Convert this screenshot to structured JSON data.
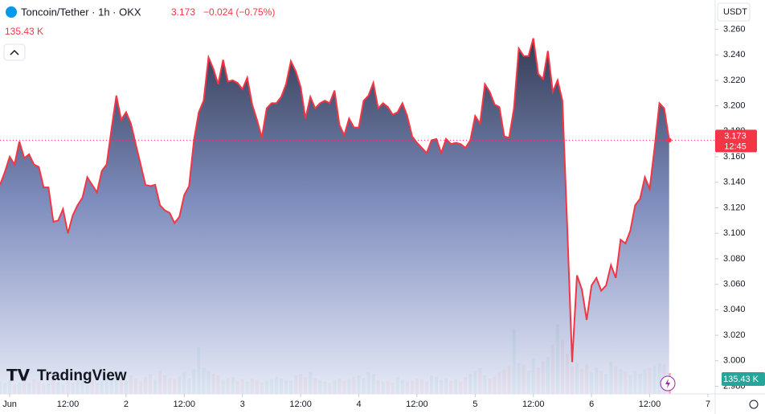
{
  "chart_data": {
    "type": "area",
    "title": "Toncoin/Tether · 1h · OKX",
    "last_price": "3.173",
    "change": "−0.024 (−0.75%)",
    "volume_label": "135.43 K",
    "currency": "USDT",
    "countdown": "12:45",
    "logo": "TradingView",
    "x": [
      -2,
      -1,
      0,
      1,
      2,
      3,
      4,
      5,
      6,
      7,
      8,
      9,
      10,
      11,
      12,
      13,
      14,
      15,
      16,
      17,
      18,
      19,
      20,
      21,
      22,
      23,
      24,
      25,
      26,
      27,
      28,
      29,
      30,
      31,
      32,
      33,
      34,
      35,
      36,
      37,
      38,
      39,
      40,
      41,
      42,
      43,
      44,
      45,
      46,
      47,
      48,
      49,
      50,
      51,
      52,
      53,
      54,
      55,
      56,
      57,
      58,
      59,
      60,
      61,
      62,
      63,
      64,
      65,
      66,
      67,
      68,
      69,
      70,
      71,
      72,
      73,
      74,
      75,
      76,
      77,
      78,
      79,
      80,
      81,
      82,
      83,
      84,
      85,
      86,
      87,
      88,
      89,
      90,
      91,
      92,
      93,
      94,
      95,
      96,
      97,
      98,
      99,
      100,
      101,
      102,
      103,
      104,
      105,
      106,
      107,
      108,
      109,
      110,
      111,
      112,
      113,
      114,
      115,
      116,
      117,
      118,
      119,
      120,
      121,
      122,
      123,
      124,
      125,
      126,
      127,
      128,
      129,
      130,
      131,
      132,
      133,
      134,
      135,
      136
    ],
    "series": [
      {
        "name": "Toncoin/Tether",
        "color": "#f23645",
        "values": [
          3.138,
          3.148,
          3.16,
          3.154,
          3.172,
          3.159,
          3.162,
          3.154,
          3.152,
          3.136,
          3.136,
          3.109,
          3.11,
          3.119,
          3.1,
          3.114,
          3.122,
          3.128,
          3.144,
          3.138,
          3.132,
          3.149,
          3.154,
          3.182,
          3.208,
          3.189,
          3.195,
          3.186,
          3.17,
          3.154,
          3.138,
          3.137,
          3.138,
          3.122,
          3.118,
          3.116,
          3.108,
          3.113,
          3.13,
          3.137,
          3.173,
          3.195,
          3.204,
          3.238,
          3.229,
          3.217,
          3.236,
          3.219,
          3.22,
          3.218,
          3.213,
          3.222,
          3.201,
          3.189,
          3.175,
          3.198,
          3.202,
          3.202,
          3.207,
          3.217,
          3.235,
          3.227,
          3.215,
          3.19,
          3.207,
          3.198,
          3.202,
          3.204,
          3.202,
          3.212,
          3.185,
          3.177,
          3.19,
          3.183,
          3.183,
          3.204,
          3.208,
          3.218,
          3.198,
          3.202,
          3.199,
          3.193,
          3.195,
          3.202,
          3.192,
          3.176,
          3.171,
          3.167,
          3.163,
          3.173,
          3.174,
          3.163,
          3.174,
          3.17,
          3.171,
          3.17,
          3.167,
          3.173,
          3.192,
          3.186,
          3.217,
          3.211,
          3.201,
          3.199,
          3.176,
          3.175,
          3.198,
          3.245,
          3.239,
          3.239,
          3.253,
          3.225,
          3.221,
          3.243,
          3.211,
          3.22,
          3.204,
          3.103,
          2.999,
          3.067,
          3.056,
          3.032,
          3.059,
          3.065,
          3.055,
          3.059,
          3.075,
          3.065,
          3.095,
          3.092,
          3.102,
          3.122,
          3.127,
          3.144,
          3.135,
          3.167,
          3.202,
          3.198,
          3.173
        ]
      },
      {
        "name": "Volume",
        "axis": "y2",
        "up_color": "#26a69a",
        "down_color": "#ef5350",
        "values": [
          80,
          70,
          90,
          60,
          75,
          85,
          70,
          95,
          80,
          65,
          70,
          90,
          75,
          60,
          80,
          70,
          85,
          100,
          75,
          90,
          70,
          80,
          110,
          95,
          140,
          90,
          85,
          120,
          100,
          80,
          110,
          130,
          90,
          150,
          120,
          100,
          95,
          110,
          140,
          100,
          160,
          300,
          170,
          150,
          130,
          120,
          90,
          100,
          110,
          85,
          95,
          80,
          100,
          90,
          75,
          85,
          95,
          110,
          100,
          90,
          85,
          120,
          130,
          110,
          140,
          100,
          90,
          80,
          70,
          90,
          100,
          85,
          95,
          110,
          120,
          100,
          140,
          130,
          90,
          80,
          85,
          75,
          110,
          90,
          80,
          85,
          100,
          95,
          80,
          120,
          110,
          90,
          100,
          85,
          95,
          80,
          110,
          130,
          150,
          170,
          120,
          100,
          110,
          140,
          160,
          180,
          420,
          200,
          190,
          150,
          230,
          170,
          210,
          240,
          320,
          450,
          350,
          260,
          180,
          200,
          160,
          190,
          140,
          170,
          150,
          130,
          210,
          180,
          160,
          140,
          120,
          150,
          130,
          160,
          170,
          180,
          200,
          190,
          135.43
        ]
      }
    ],
    "xlim": [
      -2,
      145.5
    ],
    "xticks": [
      {
        "value": 0,
        "label": "Jun"
      },
      {
        "value": 12,
        "label": "12:00"
      },
      {
        "value": 24,
        "label": "2"
      },
      {
        "value": 36,
        "label": "12:00"
      },
      {
        "value": 48,
        "label": "3"
      },
      {
        "value": 60,
        "label": "12:00"
      },
      {
        "value": 72,
        "label": "4"
      },
      {
        "value": 84,
        "label": "12:00"
      },
      {
        "value": 96,
        "label": "5"
      },
      {
        "value": 108,
        "label": "12:00"
      },
      {
        "value": 120,
        "label": "6"
      },
      {
        "value": 132,
        "label": "12:00"
      },
      {
        "value": 144,
        "label": "7"
      }
    ],
    "ylim": [
      2.974,
      3.283
    ],
    "yticks": [
      {
        "value": 2.98,
        "label": "2.980"
      },
      {
        "value": 3.0,
        "label": "3.000"
      },
      {
        "value": 3.02,
        "label": "3.020"
      },
      {
        "value": 3.04,
        "label": "3.040"
      },
      {
        "value": 3.06,
        "label": "3.060"
      },
      {
        "value": 3.08,
        "label": "3.080"
      },
      {
        "value": 3.1,
        "label": "3.100"
      },
      {
        "value": 3.12,
        "label": "3.120"
      },
      {
        "value": 3.14,
        "label": "3.140"
      },
      {
        "value": 3.16,
        "label": "3.160"
      },
      {
        "value": 3.18,
        "label": "3.180"
      },
      {
        "value": 3.2,
        "label": "3.200"
      },
      {
        "value": 3.22,
        "label": "3.220"
      },
      {
        "value": 3.24,
        "label": "3.240"
      },
      {
        "value": 3.26,
        "label": "3.260"
      }
    ],
    "y2lim": [
      0,
      2550
    ],
    "grid": false
  }
}
